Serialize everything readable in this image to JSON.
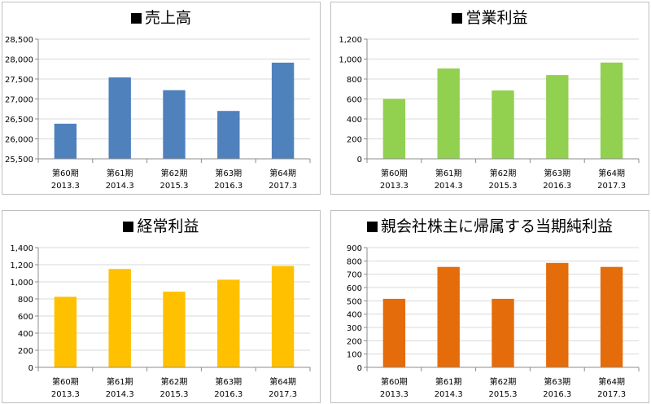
{
  "chart_data": [
    {
      "type": "bar",
      "title": "売上高",
      "categories": [
        "第60期",
        "第61期",
        "第62期",
        "第63期",
        "第64期"
      ],
      "subcategories": [
        "2013.3",
        "2014.3",
        "2015.3",
        "2016.3",
        "2017.3"
      ],
      "values": [
        26380,
        27540,
        27220,
        26700,
        27910
      ],
      "ylim": [
        25500,
        28500
      ],
      "yticks": [
        "25,500",
        "26,000",
        "26,500",
        "27,000",
        "27,500",
        "28,000",
        "28,500"
      ],
      "color": "#4f81bd",
      "grid": true
    },
    {
      "type": "bar",
      "title": "営業利益",
      "categories": [
        "第60期",
        "第61期",
        "第62期",
        "第63期",
        "第64期"
      ],
      "subcategories": [
        "2013.3",
        "2014.3",
        "2015.3",
        "2016.3",
        "2017.3"
      ],
      "values": [
        600,
        905,
        685,
        840,
        965
      ],
      "ylim": [
        0,
        1200
      ],
      "yticks": [
        "0",
        "200",
        "400",
        "600",
        "800",
        "1,000",
        "1,200"
      ],
      "color": "#92d050",
      "grid": true
    },
    {
      "type": "bar",
      "title": "経常利益",
      "categories": [
        "第60期",
        "第61期",
        "第62期",
        "第63期",
        "第64期"
      ],
      "subcategories": [
        "2013.3",
        "2014.3",
        "2015.3",
        "2016.3",
        "2017.3"
      ],
      "values": [
        825,
        1150,
        885,
        1025,
        1185
      ],
      "ylim": [
        0,
        1400
      ],
      "yticks": [
        "0",
        "200",
        "400",
        "600",
        "800",
        "1,000",
        "1,200",
        "1,400"
      ],
      "color": "#ffc000",
      "grid": true
    },
    {
      "type": "bar",
      "title": "親会社株主に帰属する当期純利益",
      "categories": [
        "第60期",
        "第61期",
        "第62期",
        "第63期",
        "第64期"
      ],
      "subcategories": [
        "2013.3",
        "2014.3",
        "2015.3",
        "2016.3",
        "2017.3"
      ],
      "values": [
        515,
        755,
        515,
        785,
        755
      ],
      "ylim": [
        0,
        900
      ],
      "yticks": [
        "0",
        "100",
        "200",
        "300",
        "400",
        "500",
        "600",
        "700",
        "800",
        "900"
      ],
      "color": "#e46c0a",
      "grid": true
    }
  ]
}
